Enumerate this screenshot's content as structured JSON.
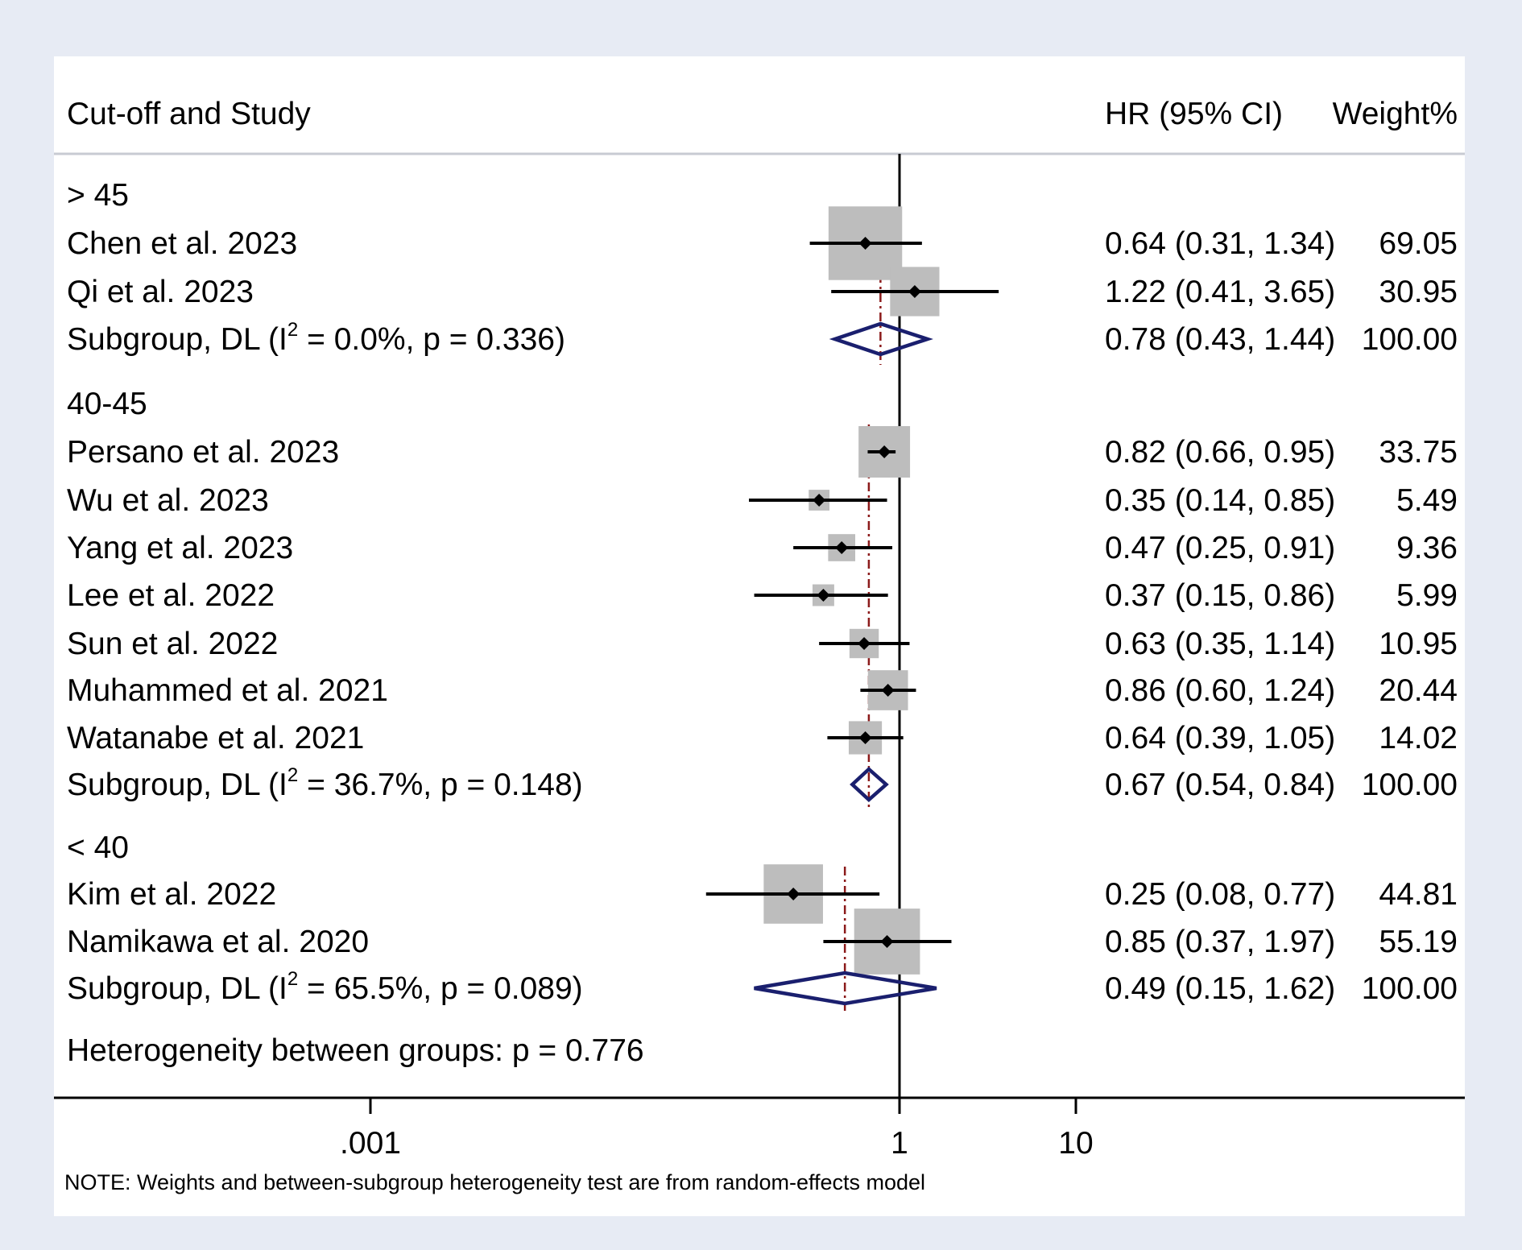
{
  "chart_data": {
    "type": "forest",
    "x_scale": "log10",
    "header": {
      "left": "Cut-off and Study",
      "right": "HR (95% CI)",
      "weight": "Weight%"
    },
    "reference_line": 1,
    "x_ticks": [
      {
        "value": 0.001,
        "label": ".001"
      },
      {
        "value": 1,
        "label": "1"
      },
      {
        "value": 10,
        "label": "10"
      }
    ],
    "groups": [
      {
        "label": "> 45",
        "studies": [
          {
            "name": "Chen et al. 2023",
            "hr": 0.64,
            "lo": 0.31,
            "hi": 1.34,
            "weight": 69.05,
            "text": "0.64 (0.31, 1.34)",
            "weight_text": "69.05"
          },
          {
            "name": "Qi et al. 2023",
            "hr": 1.22,
            "lo": 0.41,
            "hi": 3.65,
            "weight": 30.95,
            "text": "1.22 (0.41, 3.65)",
            "weight_text": "30.95"
          }
        ],
        "subgroup": {
          "label_prefix": "Subgroup, DL (I",
          "label_sup": "2",
          "label_suffix": " = 0.0%, p = 0.336)",
          "hr": 0.78,
          "lo": 0.43,
          "hi": 1.44,
          "text": "0.78 (0.43, 1.44)",
          "weight_text": "100.00"
        }
      },
      {
        "label": "40-45",
        "studies": [
          {
            "name": "Persano et al. 2023",
            "hr": 0.82,
            "lo": 0.66,
            "hi": 0.95,
            "weight": 33.75,
            "text": "0.82 (0.66, 0.95)",
            "weight_text": "33.75"
          },
          {
            "name": "Wu et al. 2023",
            "hr": 0.35,
            "lo": 0.14,
            "hi": 0.85,
            "weight": 5.49,
            "text": "0.35 (0.14, 0.85)",
            "weight_text": "5.49"
          },
          {
            "name": "Yang et al. 2023",
            "hr": 0.47,
            "lo": 0.25,
            "hi": 0.91,
            "weight": 9.36,
            "text": "0.47 (0.25, 0.91)",
            "weight_text": "9.36"
          },
          {
            "name": "Lee et al. 2022",
            "hr": 0.37,
            "lo": 0.15,
            "hi": 0.86,
            "weight": 5.99,
            "text": "0.37 (0.15, 0.86)",
            "weight_text": "5.99"
          },
          {
            "name": "Sun et al. 2022",
            "hr": 0.63,
            "lo": 0.35,
            "hi": 1.14,
            "weight": 10.95,
            "text": "0.63 (0.35, 1.14)",
            "weight_text": "10.95"
          },
          {
            "name": "Muhammed et al. 2021",
            "hr": 0.86,
            "lo": 0.6,
            "hi": 1.24,
            "weight": 20.44,
            "text": "0.86 (0.60, 1.24)",
            "weight_text": "20.44"
          },
          {
            "name": "Watanabe et al. 2021",
            "hr": 0.64,
            "lo": 0.39,
            "hi": 1.05,
            "weight": 14.02,
            "text": "0.64 (0.39, 1.05)",
            "weight_text": "14.02"
          }
        ],
        "subgroup": {
          "label_prefix": "Subgroup, DL (I",
          "label_sup": "2",
          "label_suffix": " = 36.7%, p = 0.148)",
          "hr": 0.67,
          "lo": 0.54,
          "hi": 0.84,
          "text": "0.67 (0.54, 0.84)",
          "weight_text": "100.00"
        }
      },
      {
        "label": "< 40",
        "studies": [
          {
            "name": "Kim et al. 2022",
            "hr": 0.25,
            "lo": 0.08,
            "hi": 0.77,
            "weight": 44.81,
            "text": "0.25 (0.08, 0.77)",
            "weight_text": "44.81"
          },
          {
            "name": "Namikawa et al. 2020",
            "hr": 0.85,
            "lo": 0.37,
            "hi": 1.97,
            "weight": 55.19,
            "text": "0.85 (0.37, 1.97)",
            "weight_text": "55.19"
          }
        ],
        "subgroup": {
          "label_prefix": "Subgroup, DL (I",
          "label_sup": "2",
          "label_suffix": " = 65.5%, p = 0.089)",
          "hr": 0.49,
          "lo": 0.15,
          "hi": 1.62,
          "text": "0.49 (0.15, 1.62)",
          "weight_text": "100.00"
        }
      }
    ],
    "heterogeneity_text": "Heterogeneity between groups: p = 0.776",
    "note": "NOTE: Weights and between-subgroup heterogeneity test are from random-effects model",
    "colors": {
      "outer_background": "#e7ebf4",
      "panel_background": "#ffffff",
      "box": "#bdbdbd",
      "ci_line": "#000000",
      "diamond": "#1a1f6e",
      "pooled_line": "#8b1a1a",
      "axis": "#000000",
      "divider": "#c8cbd3",
      "text": "#000000"
    }
  }
}
